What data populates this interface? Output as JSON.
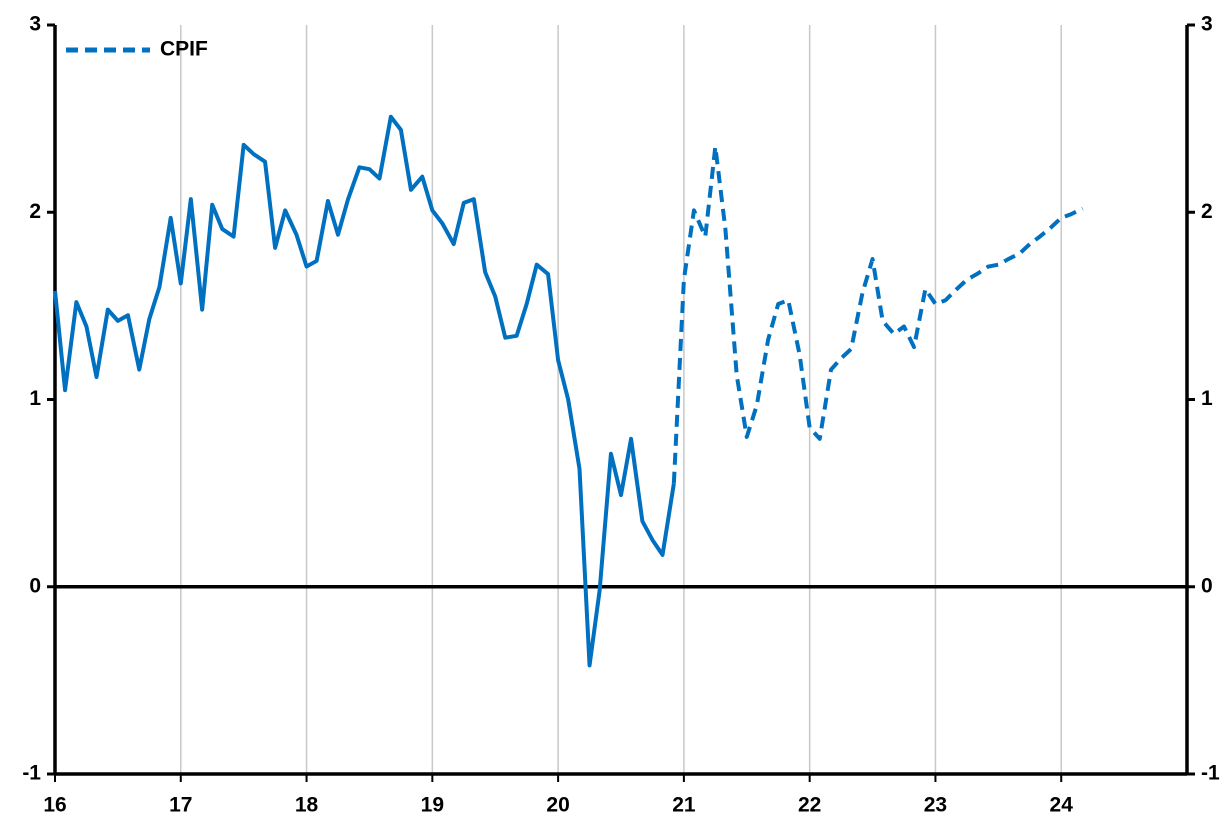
{
  "chart_data": {
    "type": "line",
    "xlim": [
      16,
      25
    ],
    "xticks": [
      16,
      17,
      18,
      19,
      20,
      21,
      22,
      23,
      24
    ],
    "ylim": [
      -1,
      3
    ],
    "yticks": [
      -1,
      0,
      1,
      2,
      3
    ],
    "y2lim": [
      -1,
      3
    ],
    "y2ticks": [
      -1,
      0,
      1,
      2,
      3
    ],
    "grid": true,
    "legend": "upper left",
    "series": [
      {
        "color": "#0070c0",
        "dashed": false,
        "x": [
          16,
          16.08,
          16.17,
          16.25,
          16.33,
          16.42,
          16.5,
          16.58,
          16.67,
          16.75,
          16.83,
          16.92,
          17,
          17.08,
          17.17,
          17.25,
          17.33,
          17.42,
          17.5,
          17.58,
          17.67,
          17.75,
          17.83,
          17.92,
          18,
          18.08,
          18.17,
          18.25,
          18.33,
          18.42,
          18.5,
          18.58,
          18.67,
          18.75,
          18.83,
          18.92,
          19,
          19.08,
          19.17,
          19.25,
          19.33,
          19.42,
          19.5,
          19.58,
          19.67,
          19.75,
          19.83,
          19.92,
          20,
          20.08,
          20.17,
          20.25,
          20.33,
          20.42,
          20.5,
          20.58,
          20.67,
          20.75,
          20.83,
          20.92
        ],
        "values": [
          1.58,
          1.05,
          1.52,
          1.39,
          1.12,
          1.48,
          1.42,
          1.45,
          1.16,
          1.43,
          1.6,
          1.97,
          1.62,
          2.07,
          1.48,
          2.04,
          1.91,
          1.87,
          2.36,
          2.31,
          2.27,
          1.81,
          2.01,
          1.88,
          1.71,
          1.74,
          2.06,
          1.88,
          2.07,
          2.24,
          2.23,
          2.18,
          2.51,
          2.44,
          2.12,
          2.19,
          2.01,
          1.94,
          1.83,
          2.05,
          2.07,
          1.68,
          1.55,
          1.33,
          1.34,
          1.51,
          1.72,
          1.67,
          1.21,
          1.0,
          0.63,
          -0.42,
          -0.02,
          0.71,
          0.49,
          0.79,
          0.35,
          0.25,
          0.17,
          0.55
        ]
      },
      {
        "name": "CPIF",
        "color": "#0070c0",
        "dashed": true,
        "x": [
          20.92,
          21,
          21.08,
          21.17,
          21.25,
          21.33,
          21.42,
          21.5,
          21.58,
          21.67,
          21.75,
          21.83,
          21.92,
          22,
          22.08,
          22.17,
          22.25,
          22.33,
          22.42,
          22.5,
          22.58,
          22.67,
          22.75,
          22.83,
          22.92,
          23,
          23.08,
          23.17,
          23.25,
          23.33,
          23.42,
          23.5,
          23.58,
          23.67,
          23.75,
          23.83,
          23.92,
          24,
          24.08,
          24.17
        ],
        "values": [
          0.55,
          1.64,
          2.01,
          1.87,
          2.35,
          1.91,
          1.13,
          0.8,
          0.97,
          1.32,
          1.51,
          1.53,
          1.24,
          0.85,
          0.79,
          1.16,
          1.22,
          1.27,
          1.57,
          1.75,
          1.42,
          1.35,
          1.39,
          1.28,
          1.59,
          1.51,
          1.53,
          1.59,
          1.64,
          1.67,
          1.71,
          1.72,
          1.75,
          1.78,
          1.83,
          1.87,
          1.92,
          1.97,
          1.99,
          2.02
        ]
      }
    ]
  }
}
